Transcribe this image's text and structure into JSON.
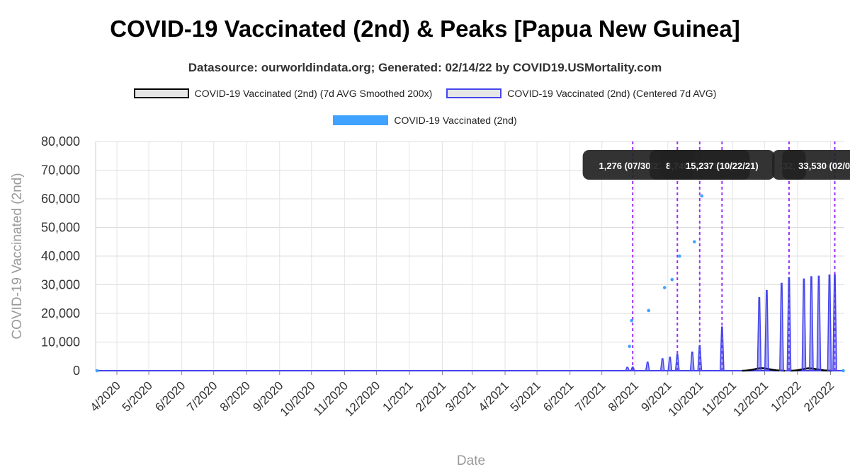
{
  "chart_data": {
    "type": "line",
    "title": "COVID-19 Vaccinated (2nd) & Peaks [Papua New Guinea]",
    "subtitle": "Datasource: ourworldindata.org; Generated: 02/14/22 by COVID19.USMortality.com",
    "xlabel": "Date",
    "ylabel": "COVID-19 Vaccinated (2nd)",
    "ylim": [
      0,
      80000
    ],
    "yticks": [
      "0",
      "10,000",
      "20,000",
      "30,000",
      "40,000",
      "50,000",
      "60,000",
      "70,000",
      "80,000"
    ],
    "xticks": [
      "4/2020",
      "5/2020",
      "6/2020",
      "7/2020",
      "8/2020",
      "9/2020",
      "10/2020",
      "11/2020",
      "12/2020",
      "1/2021",
      "2/2021",
      "3/2021",
      "4/2021",
      "5/2021",
      "6/2021",
      "7/2021",
      "8/2021",
      "9/2021",
      "10/2021",
      "11/2021",
      "12/2021",
      "1/2022",
      "2/2022"
    ],
    "grid": true,
    "legend_position": "top",
    "legend": [
      {
        "label": "COVID-19 Vaccinated (2nd) (7d AVG Smoothed 200x)",
        "color": "#000000",
        "fill": "#e6e6e6"
      },
      {
        "label": "COVID-19 Vaccinated (2nd) (Centered 7d AVG)",
        "color": "#4444ee",
        "fill": "#e6e6e6"
      },
      {
        "label": "COVID-19 Vaccinated (2nd)",
        "color": "#3fa3ff",
        "fill": "#3fa3ff"
      }
    ],
    "series": {
      "raw_points": [
        {
          "date": "2021-07-27",
          "y": 8500
        },
        {
          "date": "2021-07-29",
          "y": 17500
        },
        {
          "date": "2021-08-14",
          "y": 21000
        },
        {
          "date": "2021-08-29",
          "y": 29000
        },
        {
          "date": "2021-09-05",
          "y": 31800
        },
        {
          "date": "2021-09-12",
          "y": 40000
        },
        {
          "date": "2021-09-26",
          "y": 45000
        },
        {
          "date": "2021-10-03",
          "y": 61000
        },
        {
          "date": "2022-02-13",
          "y": 0
        }
      ],
      "centered_spikes": [
        {
          "date": "2021-07-25",
          "y": 1200
        },
        {
          "date": "2021-07-30",
          "y": 1276
        },
        {
          "date": "2021-08-13",
          "y": 3000
        },
        {
          "date": "2021-08-27",
          "y": 4200
        },
        {
          "date": "2021-09-03",
          "y": 4700
        },
        {
          "date": "2021-09-10",
          "y": 5700
        },
        {
          "date": "2021-09-24",
          "y": 6500
        },
        {
          "date": "2021-10-01",
          "y": 8740
        },
        {
          "date": "2021-10-22",
          "y": 15237
        },
        {
          "date": "2021-11-26",
          "y": 25500
        },
        {
          "date": "2021-12-03",
          "y": 28000
        },
        {
          "date": "2021-12-17",
          "y": 30500
        },
        {
          "date": "2021-12-24",
          "y": 32500
        },
        {
          "date": "2022-01-07",
          "y": 32000
        },
        {
          "date": "2022-01-14",
          "y": 32800
        },
        {
          "date": "2022-01-21",
          "y": 33000
        },
        {
          "date": "2022-01-31",
          "y": 33400
        },
        {
          "date": "2022-02-05",
          "y": 33530
        }
      ],
      "smoothed_humps": [
        {
          "start": "2021-11-10",
          "peak": "2021-11-28",
          "end": "2021-12-20",
          "y": 900
        },
        {
          "start": "2021-12-25",
          "peak": "2022-01-12",
          "end": "2022-02-02",
          "y": 850
        }
      ]
    },
    "peaks": [
      {
        "date": "2021-07-30",
        "label": "1,276 (07/30/21)"
      },
      {
        "date": "2021-09-10",
        "label": "5,7"
      },
      {
        "date": "2021-10-01",
        "label": "8,740 (10/01/21)"
      },
      {
        "date": "2021-10-22",
        "label": "15,237 (10/22/21)"
      },
      {
        "date": "2021-12-24",
        "label": "32,"
      },
      {
        "date": "2022-02-05",
        "label": "33,530 (02/05/22)"
      }
    ],
    "x_start": "2020-03-12",
    "x_end": "2022-02-14"
  }
}
